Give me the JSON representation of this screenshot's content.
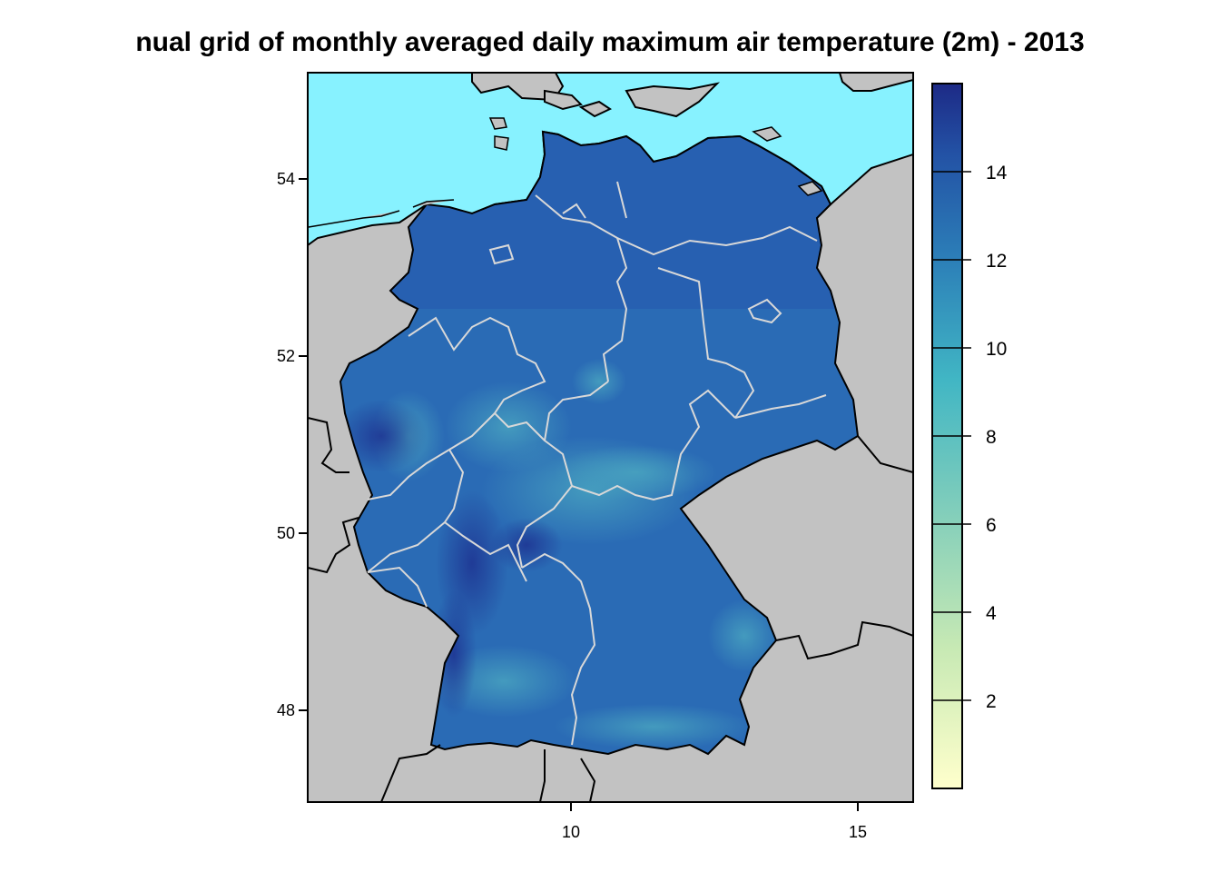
{
  "title": "nual grid of monthly averaged daily maximum air temperature (2m) - 2013",
  "map": {
    "x_ticks": [
      {
        "value": 10,
        "label": "10"
      },
      {
        "value": 15,
        "label": "15"
      }
    ],
    "y_ticks": [
      {
        "value": 48,
        "label": "48"
      },
      {
        "value": 50,
        "label": "50"
      },
      {
        "value": 52,
        "label": "52"
      },
      {
        "value": 54,
        "label": "54"
      }
    ],
    "colors": {
      "sea": "#87f2ff",
      "neighbor_land": "#c2c2c2",
      "country_fill": "#2a6bb5",
      "state_border": "#d8d8d8",
      "coast_border": "#000000"
    }
  },
  "colorbar": {
    "ticks": [
      {
        "value": 2,
        "label": "2"
      },
      {
        "value": 4,
        "label": "4"
      },
      {
        "value": 6,
        "label": "6"
      },
      {
        "value": 8,
        "label": "8"
      },
      {
        "value": 10,
        "label": "10"
      },
      {
        "value": 12,
        "label": "12"
      },
      {
        "value": 14,
        "label": "14"
      }
    ],
    "range": [
      0,
      16
    ],
    "colors": [
      "#ffffcc",
      "#c7e9b4",
      "#7fcdbb",
      "#41b6c4",
      "#2c7fb8",
      "#253494",
      "#1d2a86"
    ]
  }
}
